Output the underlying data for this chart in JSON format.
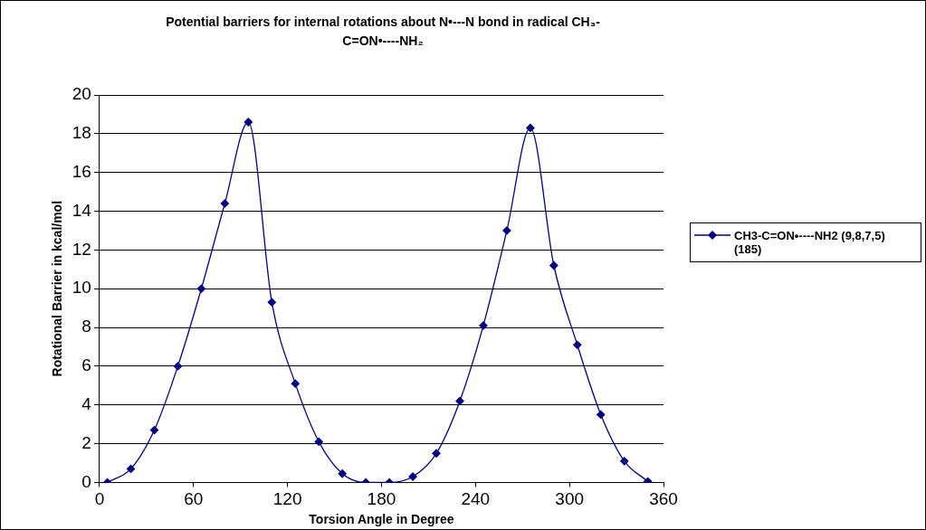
{
  "chart_data": {
    "type": "line",
    "title": "Potential barriers for internal rotations about N•---N bond in radical CH₃-C=ON•----NH₂",
    "xlabel": "Torsion Angle in Degree",
    "ylabel": "Rotational Barrier in kcal/mol",
    "x": [
      5,
      20,
      35,
      50,
      65,
      80,
      95,
      110,
      125,
      140,
      155,
      170,
      185,
      200,
      215,
      230,
      245,
      260,
      275,
      290,
      305,
      320,
      335,
      350
    ],
    "series": [
      {
        "name": "CH3-C=ON•----NH2 (9,8,7,5)(185)",
        "color": "#000080",
        "values": [
          0,
          0.7,
          2.7,
          6.0,
          10.0,
          14.4,
          18.6,
          9.3,
          5.1,
          2.1,
          0.45,
          0,
          0,
          0.3,
          1.5,
          4.2,
          8.1,
          13.0,
          18.3,
          11.2,
          7.1,
          3.5,
          1.1,
          0.05
        ]
      }
    ],
    "xlim": [
      0,
      360
    ],
    "xticks": [
      0,
      60,
      120,
      180,
      240,
      300,
      360
    ],
    "ylim": [
      0,
      20
    ],
    "yticks": [
      0,
      2,
      4,
      6,
      8,
      10,
      12,
      14,
      16,
      18,
      20
    ],
    "grid": "y",
    "legend": "right",
    "marker": "diamond",
    "line_style": "solid"
  }
}
